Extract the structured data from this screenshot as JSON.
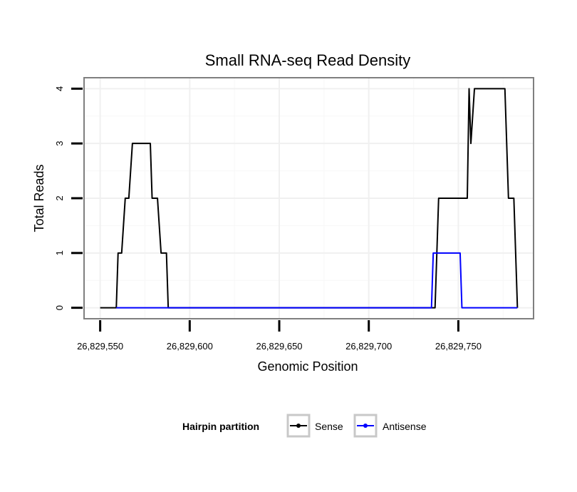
{
  "chart_data": {
    "type": "line",
    "title": "Small RNA-seq Read Density",
    "xlabel": "Genomic Position",
    "ylabel": "Total Reads",
    "xlim": [
      26829541,
      26829792
    ],
    "ylim": [
      -0.2,
      4.2
    ],
    "x_ticks": [
      26829550,
      26829600,
      26829650,
      26829700,
      26829750
    ],
    "x_tick_labels": [
      "26,829,550",
      "26,829,600",
      "26,829,650",
      "26,829,700",
      "26,829,750"
    ],
    "y_ticks": [
      0,
      1,
      2,
      3,
      4
    ],
    "y_tick_labels": [
      "0",
      "1",
      "2",
      "3",
      "4"
    ],
    "grid": true,
    "legend": {
      "title": "Hairpin partition",
      "position": "bottom",
      "entries": [
        "Sense",
        "Antisense"
      ]
    },
    "series": [
      {
        "name": "Sense",
        "color": "#000000",
        "points": [
          [
            26829550,
            0
          ],
          [
            26829559,
            0
          ],
          [
            26829560,
            1
          ],
          [
            26829562,
            1
          ],
          [
            26829564,
            2
          ],
          [
            26829566,
            2
          ],
          [
            26829568,
            3
          ],
          [
            26829578,
            3
          ],
          [
            26829579,
            2
          ],
          [
            26829582,
            2
          ],
          [
            26829584,
            1
          ],
          [
            26829587,
            1
          ],
          [
            26829588,
            0
          ],
          [
            26829737,
            0
          ],
          [
            26829739,
            2
          ],
          [
            26829755,
            2
          ],
          [
            26829756,
            4
          ],
          [
            26829757,
            3
          ],
          [
            26829759,
            4
          ],
          [
            26829776,
            4
          ],
          [
            26829778,
            2
          ],
          [
            26829781,
            2
          ],
          [
            26829782,
            1
          ],
          [
            26829783,
            0
          ]
        ]
      },
      {
        "name": "Antisense",
        "color": "#0000ff",
        "points": [
          [
            26829559,
            0
          ],
          [
            26829588,
            0
          ],
          [
            26829735,
            0
          ],
          [
            26829736,
            1
          ],
          [
            26829751,
            1
          ],
          [
            26829752,
            0
          ],
          [
            26829783,
            0
          ]
        ]
      }
    ]
  }
}
